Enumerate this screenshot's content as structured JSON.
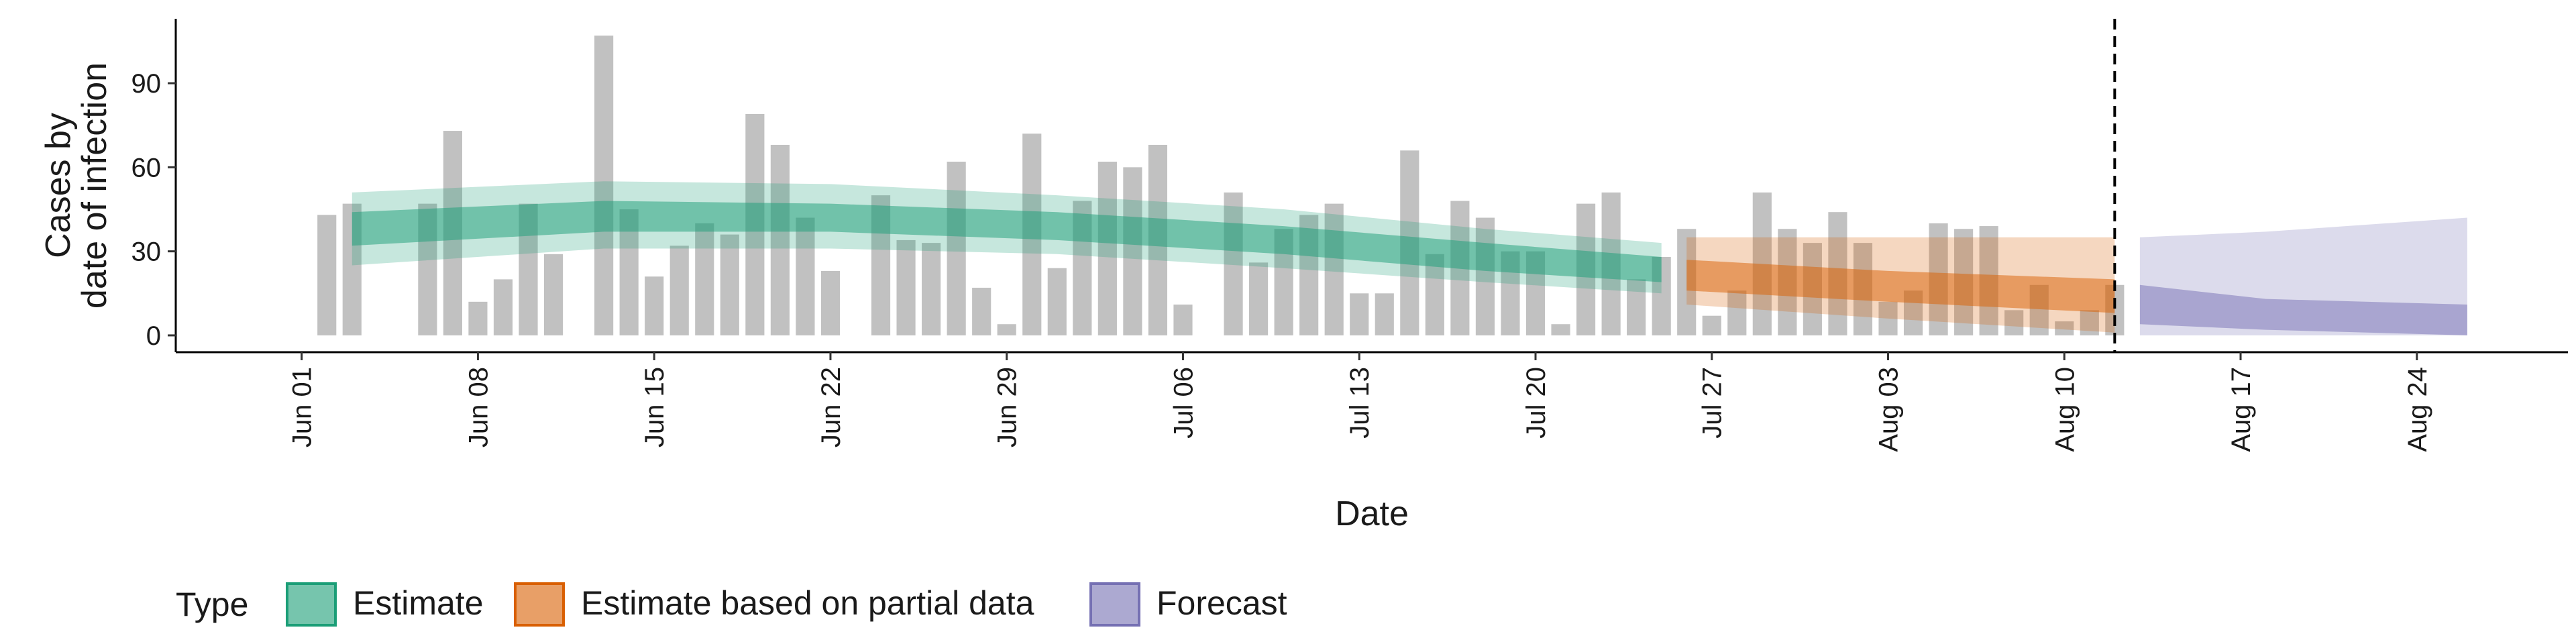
{
  "chart_data": {
    "type": "bar",
    "xlabel": "Date",
    "ylabel_lines": [
      "Cases by",
      "date of infection"
    ],
    "ylim": [
      -6,
      113
    ],
    "xlim": [
      "2020-05-27",
      "2020-08-30"
    ],
    "y_ticks": [
      0,
      30,
      60,
      90
    ],
    "x_ticks": [
      {
        "date": "2020-06-01",
        "label": "Jun 01"
      },
      {
        "date": "2020-06-08",
        "label": "Jun 08"
      },
      {
        "date": "2020-06-15",
        "label": "Jun 15"
      },
      {
        "date": "2020-06-22",
        "label": "Jun 22"
      },
      {
        "date": "2020-06-29",
        "label": "Jun 29"
      },
      {
        "date": "2020-07-06",
        "label": "Jul 06"
      },
      {
        "date": "2020-07-13",
        "label": "Jul 13"
      },
      {
        "date": "2020-07-20",
        "label": "Jul 20"
      },
      {
        "date": "2020-07-27",
        "label": "Jul 27"
      },
      {
        "date": "2020-08-03",
        "label": "Aug 03"
      },
      {
        "date": "2020-08-10",
        "label": "Aug 10"
      },
      {
        "date": "2020-08-17",
        "label": "Aug 17"
      },
      {
        "date": "2020-08-24",
        "label": "Aug 24"
      }
    ],
    "cases": {
      "start_date": "2020-06-02",
      "values": [
        43,
        47,
        0,
        0,
        47,
        73,
        12,
        20,
        47,
        29,
        0,
        107,
        45,
        21,
        32,
        40,
        36,
        79,
        68,
        42,
        23,
        0,
        50,
        34,
        33,
        62,
        17,
        4,
        72,
        24,
        48,
        62,
        60,
        68,
        11,
        0,
        51,
        26,
        38,
        43,
        47,
        15,
        15,
        66,
        29,
        48,
        42,
        30,
        30,
        4,
        47,
        51,
        20,
        28,
        38,
        7,
        16,
        51,
        38,
        33,
        44,
        33,
        12,
        16,
        40,
        38,
        39,
        9,
        18,
        5,
        9,
        18
      ]
    },
    "vline_date": "2020-08-12",
    "series": [
      {
        "key": "estimate",
        "name": "Estimate",
        "fill": "#1b9e77",
        "stroke": "#1b9e77",
        "points": [
          {
            "date": "2020-06-03",
            "lo90": 25,
            "lo50": 32,
            "hi50": 44,
            "hi90": 51
          },
          {
            "date": "2020-06-13",
            "lo90": 31,
            "lo50": 37,
            "hi50": 48,
            "hi90": 55
          },
          {
            "date": "2020-06-22",
            "lo90": 31,
            "lo50": 37,
            "hi50": 47,
            "hi90": 54
          },
          {
            "date": "2020-07-01",
            "lo90": 29,
            "lo50": 34,
            "hi50": 44,
            "hi90": 50
          },
          {
            "date": "2020-07-10",
            "lo90": 24,
            "lo50": 29,
            "hi50": 39,
            "hi90": 45
          },
          {
            "date": "2020-07-18",
            "lo90": 19,
            "lo50": 23,
            "hi50": 33,
            "hi90": 38
          },
          {
            "date": "2020-07-25",
            "lo90": 15,
            "lo50": 19,
            "hi50": 28,
            "hi90": 33
          }
        ]
      },
      {
        "key": "partial",
        "name": "Estimate based on partial data",
        "fill": "#d95f02",
        "stroke": "#d95f02",
        "points": [
          {
            "date": "2020-07-26",
            "lo90": 11,
            "lo50": 16,
            "hi50": 27,
            "hi90": 35
          },
          {
            "date": "2020-08-03",
            "lo90": 6,
            "lo50": 12,
            "hi50": 23,
            "hi90": 35
          },
          {
            "date": "2020-08-12",
            "lo90": 1,
            "lo50": 8,
            "hi50": 20,
            "hi90": 35
          }
        ]
      },
      {
        "key": "forecast",
        "name": "Forecast",
        "fill": "#7570b3",
        "stroke": "#7570b3",
        "points": [
          {
            "date": "2020-08-13",
            "lo90": 0,
            "lo50": 4,
            "hi50": 18,
            "hi90": 35
          },
          {
            "date": "2020-08-18",
            "lo90": 0,
            "lo50": 2,
            "hi50": 13,
            "hi90": 37
          },
          {
            "date": "2020-08-26",
            "lo90": 0,
            "lo50": 0,
            "hi50": 11,
            "hi90": 42
          }
        ]
      }
    ],
    "legend": {
      "title": "Type",
      "position": "bottom-left",
      "items": [
        "Estimate",
        "Estimate based on partial data",
        "Forecast"
      ]
    },
    "grid": false
  }
}
